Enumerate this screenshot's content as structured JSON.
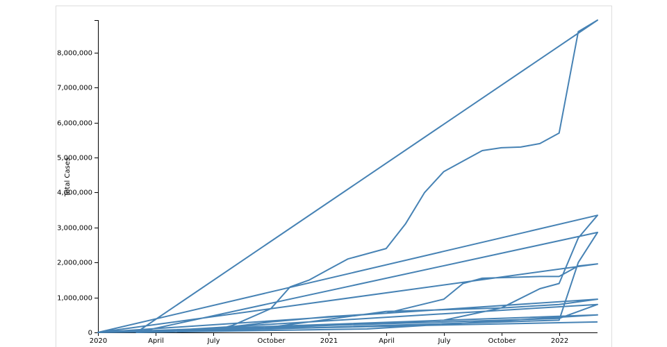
{
  "chart_data": {
    "type": "line",
    "y_label": "Total Cases",
    "xlim": [
      "2020-01",
      "2022-03"
    ],
    "xticks": [
      {
        "value": "2020-01",
        "label": "2020"
      },
      {
        "value": "2020-04",
        "label": "April"
      },
      {
        "value": "2020-07",
        "label": "July"
      },
      {
        "value": "2020-10",
        "label": "October"
      },
      {
        "value": "2021-01",
        "label": "2021"
      },
      {
        "value": "2021-04",
        "label": "April"
      },
      {
        "value": "2021-07",
        "label": "July"
      },
      {
        "value": "2021-10",
        "label": "October"
      },
      {
        "value": "2022-01",
        "label": "2022"
      }
    ],
    "ylim": [
      0,
      8930000
    ],
    "yticks": [
      0,
      {
        "value": 1000000,
        "label": "1,000,000"
      },
      {
        "value": 2000000,
        "label": "2,000,000"
      },
      {
        "value": 3000000,
        "label": "3,000,000"
      },
      {
        "value": 4000000,
        "label": "4,000,000"
      },
      {
        "value": 5000000,
        "label": "5,000,000"
      },
      {
        "value": 6000000,
        "label": "6,000,000"
      },
      {
        "value": 7000000,
        "label": "7,000,000"
      },
      {
        "value": 8000000,
        "label": "8,000,000"
      }
    ],
    "series": [
      {
        "color": "#4682b4",
        "x": [
          "2020-01",
          "2020-04",
          "2020-07",
          "2020-10",
          "2021-01",
          "2021-04",
          "2021-07",
          "2021-08",
          "2021-09",
          "2021-12",
          "2022-01",
          "2022-02",
          "2022-03",
          "2020-01",
          "2020-07",
          "2021-01",
          "2021-07",
          "2021-10",
          "2021-12",
          "2022-01",
          "2022-02",
          "2022-03",
          "2020-01",
          "2020-10",
          "2021-04",
          "2021-10",
          "2022-01",
          "2022-02",
          "2022-03",
          "2020-03",
          "2020-07",
          "2020-08",
          "2020-10",
          "2020-11",
          "2020-12",
          "2021-01",
          "2021-02",
          "2021-04",
          "2021-05",
          "2021-06",
          "2021-07",
          "2021-08",
          "2021-09",
          "2021-10",
          "2021-11",
          "2021-12",
          "2022-01",
          "2022-02",
          "2022-03",
          "2020-03",
          "2020-10",
          "2021-04",
          "2021-10",
          "2022-01",
          "2022-03",
          "2020-01",
          "2021-01",
          "2022-01",
          "2022-03",
          "2020-03",
          "2021-03",
          "2022-03",
          "2020-01",
          "2021-06",
          "2022-03"
        ],
        "values": [
          0,
          20000,
          100000,
          300000,
          450000,
          550000,
          950000,
          1400000,
          1550000,
          1600000,
          1600000,
          1900000,
          1960000,
          0,
          50000,
          200000,
          350000,
          700000,
          1250000,
          1400000,
          2700000,
          3350000,
          0,
          100000,
          200000,
          300000,
          350000,
          2000000,
          2860000,
          0,
          50000,
          200000,
          680000,
          1300000,
          1500000,
          1800000,
          2100000,
          2400000,
          3100000,
          4000000,
          4600000,
          4900000,
          5200000,
          5280000,
          5300000,
          5400000,
          5700000,
          8600000,
          8930000,
          0,
          150000,
          600000,
          700000,
          800000,
          950000,
          0,
          200000,
          400000,
          800000,
          0,
          100000,
          500000,
          0,
          200000,
          300000
        ]
      }
    ]
  }
}
